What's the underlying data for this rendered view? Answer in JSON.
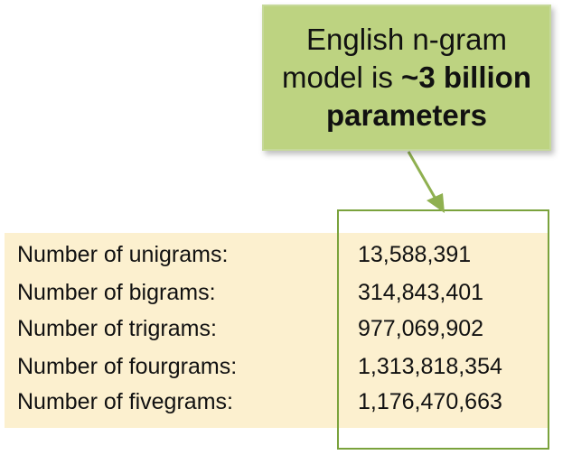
{
  "callout": {
    "line1": "English n-gram",
    "line2_prefix": "model is ",
    "line2_bold": "~3 billion",
    "line3_bold": "parameters"
  },
  "table": {
    "rows": [
      {
        "label": "Number of unigrams:",
        "value": "13,588,391"
      },
      {
        "label": "Number of bigrams:",
        "value": "314,843,401"
      },
      {
        "label": "Number of trigrams:",
        "value": "977,069,902"
      },
      {
        "label": "Number of fourgrams:",
        "value": "1,313,818,354"
      },
      {
        "label": "Number of fivegrams:",
        "value": "1,176,470,663"
      }
    ]
  },
  "colors": {
    "callout_fill": "#bdd381",
    "table_fill": "#fcf0cf",
    "frame_green": "#7aa23c"
  }
}
